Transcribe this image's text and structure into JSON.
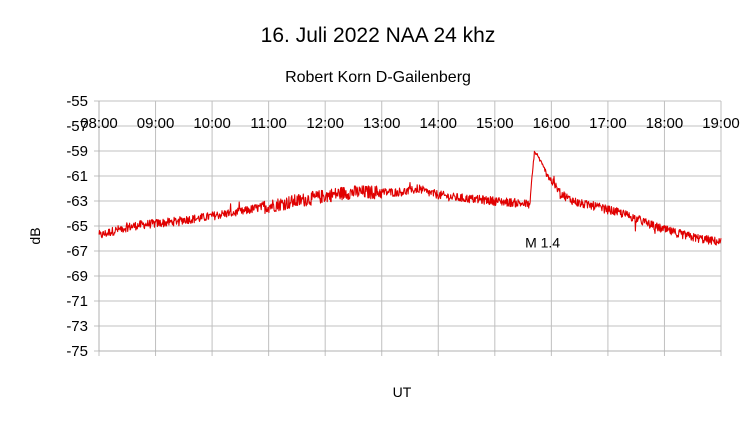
{
  "chart_data": {
    "type": "line",
    "title": "16. Juli 2022 NAA 24 khz",
    "subtitle": "Robert Korn D-Gailenberg",
    "xlabel": "UT",
    "ylabel": "dB",
    "xlim": [
      8,
      19
    ],
    "ylim": [
      -75,
      -55
    ],
    "x_tick_labels": [
      "08:00",
      "09:00",
      "10:00",
      "11:00",
      "12:00",
      "13:00",
      "14:00",
      "15:00",
      "16:00",
      "17:00",
      "18:00",
      "19:00"
    ],
    "y_tick_labels": [
      "-55",
      "-57",
      "-59",
      "-61",
      "-63",
      "-65",
      "-67",
      "-69",
      "-71",
      "-73",
      "-75"
    ],
    "y_ticks": [
      -55,
      -57,
      -59,
      -61,
      -63,
      -65,
      -67,
      -69,
      -71,
      -73,
      -75
    ],
    "grid": true,
    "series": [
      {
        "name": "NAA 24 kHz",
        "color": "#e00000",
        "points": [
          [
            8.0,
            -65.8
          ],
          [
            8.25,
            -65.4
          ],
          [
            8.5,
            -65.1
          ],
          [
            8.75,
            -64.9
          ],
          [
            9.0,
            -64.8
          ],
          [
            9.25,
            -64.7
          ],
          [
            9.5,
            -64.5
          ],
          [
            9.75,
            -64.4
          ],
          [
            10.0,
            -64.2
          ],
          [
            10.25,
            -64.0
          ],
          [
            10.5,
            -63.9
          ],
          [
            10.75,
            -63.6
          ],
          [
            11.0,
            -63.4
          ],
          [
            11.25,
            -63.2
          ],
          [
            11.5,
            -63.0
          ],
          [
            11.75,
            -62.8
          ],
          [
            12.0,
            -62.6
          ],
          [
            12.25,
            -62.4
          ],
          [
            12.5,
            -62.3
          ],
          [
            12.75,
            -62.3
          ],
          [
            13.0,
            -62.3
          ],
          [
            13.25,
            -62.3
          ],
          [
            13.5,
            -62.2
          ],
          [
            13.65,
            -62.0
          ],
          [
            13.8,
            -62.3
          ],
          [
            14.0,
            -62.5
          ],
          [
            14.25,
            -62.7
          ],
          [
            14.5,
            -62.8
          ],
          [
            14.75,
            -62.9
          ],
          [
            15.0,
            -63.0
          ],
          [
            15.25,
            -63.1
          ],
          [
            15.5,
            -63.2
          ],
          [
            15.62,
            -63.3
          ],
          [
            15.65,
            -61.5
          ],
          [
            15.7,
            -59.1
          ],
          [
            15.75,
            -59.3
          ],
          [
            15.85,
            -60.2
          ],
          [
            16.0,
            -61.4
          ],
          [
            16.15,
            -62.3
          ],
          [
            16.3,
            -62.8
          ],
          [
            16.5,
            -63.2
          ],
          [
            16.75,
            -63.4
          ],
          [
            17.0,
            -63.7
          ],
          [
            17.25,
            -64.0
          ],
          [
            17.5,
            -64.4
          ],
          [
            17.75,
            -64.9
          ],
          [
            18.0,
            -65.3
          ],
          [
            18.25,
            -65.6
          ],
          [
            18.5,
            -65.9
          ],
          [
            18.75,
            -66.1
          ],
          [
            19.0,
            -66.3
          ]
        ]
      }
    ],
    "annotations": [
      {
        "text": "M 1.4",
        "x": 15.5,
        "y": -66.0
      }
    ]
  }
}
